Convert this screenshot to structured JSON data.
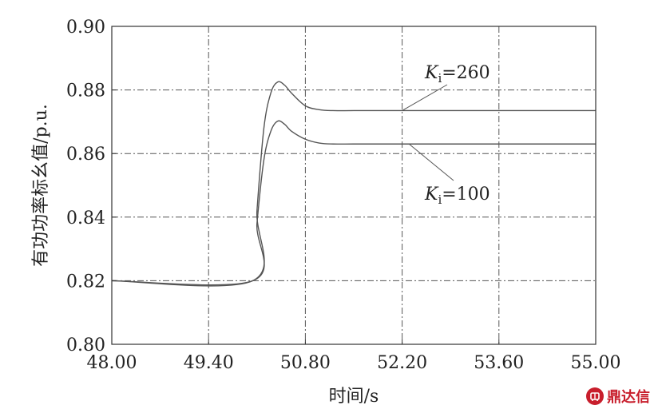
{
  "chart_data": {
    "type": "line",
    "title": "",
    "xlabel": "时间/s",
    "ylabel": "有功功率标幺值/p.u.",
    "xlim": [
      48.0,
      55.0
    ],
    "ylim": [
      0.8,
      0.9
    ],
    "x_ticks": [
      "48.00",
      "49.40",
      "50.80",
      "52.20",
      "53.60",
      "55.00"
    ],
    "y_ticks": [
      "0.80",
      "0.82",
      "0.84",
      "0.86",
      "0.88",
      "0.90"
    ],
    "grid": true,
    "series": [
      {
        "name": "Ki=260",
        "label_main": "K",
        "label_sub": "i",
        "label_rest": "=260",
        "x": [
          48.0,
          50.04,
          50.1,
          50.2,
          50.3,
          50.4,
          50.5,
          50.6,
          50.8,
          51.0,
          51.2,
          51.5,
          52.0,
          53.0,
          55.0
        ],
        "y": [
          0.82,
          0.82,
          0.842,
          0.868,
          0.879,
          0.8825,
          0.8815,
          0.879,
          0.875,
          0.8738,
          0.8735,
          0.8735,
          0.8735,
          0.8735,
          0.8735
        ]
      },
      {
        "name": "Ki=100",
        "label_main": "K",
        "label_sub": "i",
        "label_rest": "=100",
        "x": [
          48.0,
          50.04,
          50.1,
          50.2,
          50.3,
          50.4,
          50.5,
          50.6,
          50.8,
          51.0,
          51.2,
          51.5,
          52.0,
          53.0,
          55.0
        ],
        "y": [
          0.82,
          0.82,
          0.838,
          0.858,
          0.867,
          0.8702,
          0.8692,
          0.867,
          0.8645,
          0.8633,
          0.863,
          0.863,
          0.863,
          0.863,
          0.863
        ]
      }
    ]
  },
  "watermark": {
    "text": "鼎达信",
    "color": "#c81e2c"
  }
}
